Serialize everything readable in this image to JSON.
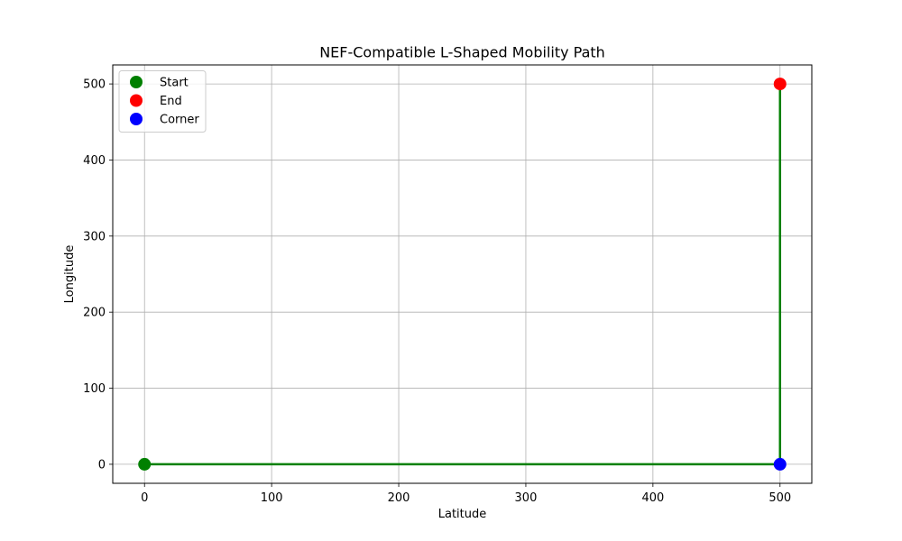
{
  "chart_data": {
    "type": "line",
    "title": "NEF-Compatible L-Shaped Mobility Path",
    "xlabel": "Latitude",
    "ylabel": "Longitude",
    "xlim": [
      -25,
      525
    ],
    "ylim": [
      -25,
      525
    ],
    "xticks": [
      0,
      100,
      200,
      300,
      400,
      500
    ],
    "yticks": [
      0,
      100,
      200,
      300,
      400,
      500
    ],
    "grid": true,
    "legend_position": "top-left",
    "series": [
      {
        "kind": "line",
        "color": "#008000",
        "points": [
          [
            0,
            0
          ],
          [
            500,
            0
          ],
          [
            500,
            500
          ]
        ]
      },
      {
        "kind": "point",
        "name": "Start",
        "color": "#008000",
        "points": [
          [
            0,
            0
          ]
        ]
      },
      {
        "kind": "point",
        "name": "End",
        "color": "#ff0000",
        "points": [
          [
            500,
            500
          ]
        ]
      },
      {
        "kind": "point",
        "name": "Corner",
        "color": "#0000ff",
        "points": [
          [
            500,
            0
          ]
        ]
      }
    ]
  }
}
